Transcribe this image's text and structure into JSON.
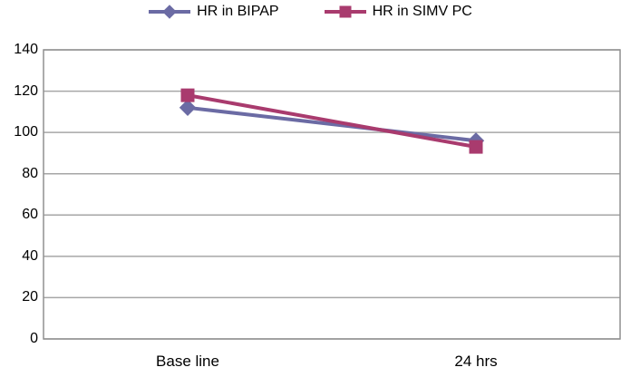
{
  "chart_data": {
    "type": "line",
    "title": "",
    "categories": [
      "Base line",
      "24 hrs"
    ],
    "series": [
      {
        "name": "HR in BIPAP",
        "values": [
          112,
          96
        ],
        "color": "#6B6BA4",
        "marker": "diamond"
      },
      {
        "name": "HR in SIMV PC",
        "values": [
          118,
          93
        ],
        "color": "#A93B6E",
        "marker": "square"
      }
    ],
    "ylim": [
      0,
      140
    ],
    "yticks": [
      0,
      20,
      40,
      60,
      80,
      100,
      120,
      140
    ],
    "xlabel": "",
    "ylabel": "",
    "grid": true,
    "legend_position": "top",
    "grid_color": "#A6A6A6",
    "border_color": "#919191",
    "background_color": "#FFFFFF",
    "text_color": "#000000"
  }
}
